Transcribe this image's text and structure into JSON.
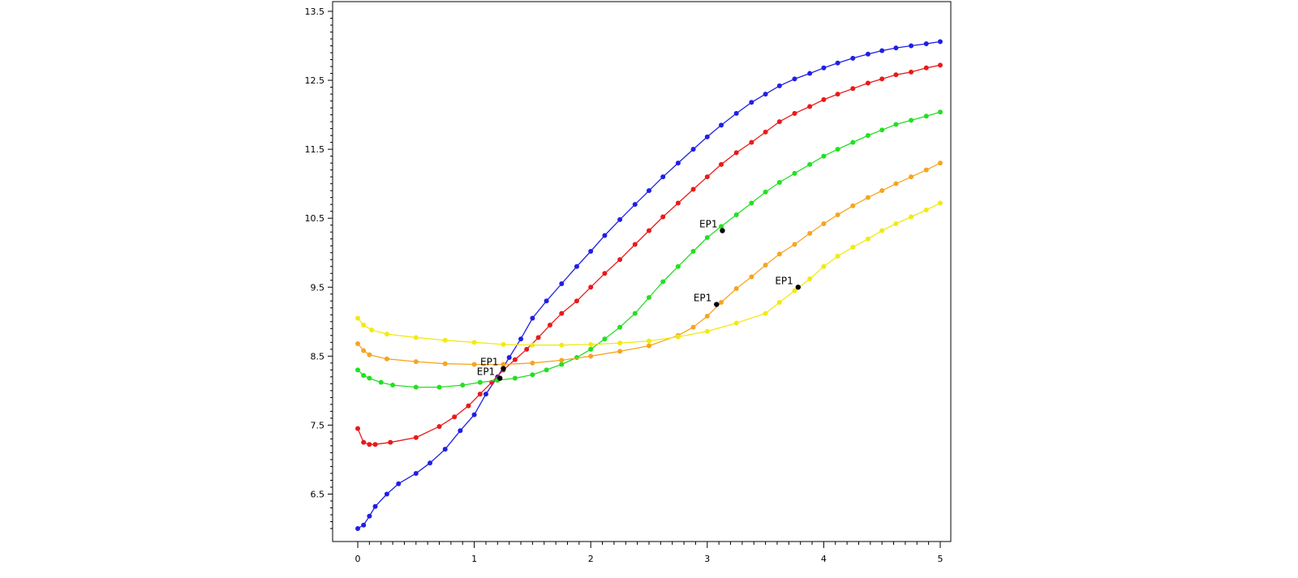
{
  "chart_data": {
    "type": "line",
    "title": "",
    "xlabel": "",
    "ylabel": "",
    "xlim": [
      0,
      5
    ],
    "ylim": [
      6,
      13.6
    ],
    "xticks": [
      "0",
      "1",
      "2",
      "3",
      "4",
      "5"
    ],
    "xtick_values": [
      0,
      1,
      2,
      3,
      4,
      5
    ],
    "yticks": [
      "6.5",
      "7.5",
      "8.5",
      "9.5",
      "10.5",
      "11.5",
      "12.5",
      "13.5"
    ],
    "ytick_values": [
      6.5,
      7.5,
      8.5,
      9.5,
      10.5,
      11.5,
      12.5,
      13.5
    ],
    "grid": false,
    "legend": "none",
    "series": [
      {
        "color": "#1f1fe6",
        "x": [
          0,
          0.05,
          0.1,
          0.15,
          0.25,
          0.35,
          0.5,
          0.62,
          0.75,
          0.88,
          1.0,
          1.1,
          1.2,
          1.3,
          1.4,
          1.5,
          1.62,
          1.75,
          1.88,
          2.0,
          2.12,
          2.25,
          2.38,
          2.5,
          2.62,
          2.75,
          2.88,
          3.0,
          3.12,
          3.25,
          3.38,
          3.5,
          3.62,
          3.75,
          3.88,
          4.0,
          4.12,
          4.25,
          4.38,
          4.5,
          4.62,
          4.75,
          4.88,
          5.0
        ],
        "y": [
          6.0,
          6.05,
          6.18,
          6.32,
          6.5,
          6.65,
          6.8,
          6.95,
          7.15,
          7.42,
          7.65,
          7.95,
          8.2,
          8.48,
          8.75,
          9.05,
          9.3,
          9.55,
          9.8,
          10.02,
          10.25,
          10.48,
          10.7,
          10.9,
          11.1,
          11.3,
          11.5,
          11.68,
          11.85,
          12.02,
          12.18,
          12.3,
          12.42,
          12.52,
          12.6,
          12.68,
          12.75,
          12.82,
          12.88,
          12.93,
          12.97,
          13.0,
          13.03,
          13.06
        ]
      },
      {
        "color": "#e81a1a",
        "x": [
          0,
          0.05,
          0.1,
          0.15,
          0.28,
          0.5,
          0.7,
          0.83,
          0.95,
          1.05,
          1.15,
          1.25,
          1.35,
          1.45,
          1.55,
          1.65,
          1.75,
          1.88,
          2.0,
          2.12,
          2.25,
          2.38,
          2.5,
          2.62,
          2.75,
          2.88,
          3.0,
          3.12,
          3.25,
          3.38,
          3.5,
          3.62,
          3.75,
          3.88,
          4.0,
          4.12,
          4.25,
          4.38,
          4.5,
          4.62,
          4.75,
          4.88,
          5.0
        ],
        "y": [
          7.45,
          7.25,
          7.22,
          7.22,
          7.25,
          7.32,
          7.48,
          7.62,
          7.78,
          7.95,
          8.12,
          8.3,
          8.45,
          8.6,
          8.77,
          8.95,
          9.12,
          9.3,
          9.5,
          9.7,
          9.9,
          10.12,
          10.32,
          10.52,
          10.72,
          10.92,
          11.1,
          11.28,
          11.45,
          11.6,
          11.75,
          11.9,
          12.02,
          12.12,
          12.22,
          12.3,
          12.38,
          12.46,
          12.52,
          12.58,
          12.62,
          12.68,
          12.72
        ]
      },
      {
        "color": "#22e022",
        "x": [
          0,
          0.05,
          0.1,
          0.2,
          0.3,
          0.5,
          0.7,
          0.9,
          1.05,
          1.2,
          1.35,
          1.5,
          1.62,
          1.75,
          1.88,
          2.0,
          2.12,
          2.25,
          2.38,
          2.5,
          2.62,
          2.75,
          2.88,
          3.0,
          3.12,
          3.25,
          3.38,
          3.5,
          3.62,
          3.75,
          3.88,
          4.0,
          4.12,
          4.25,
          4.38,
          4.5,
          4.62,
          4.75,
          4.88,
          5.0
        ],
        "y": [
          8.3,
          8.22,
          8.18,
          8.12,
          8.08,
          8.05,
          8.05,
          8.08,
          8.12,
          8.15,
          8.18,
          8.23,
          8.3,
          8.38,
          8.48,
          8.6,
          8.75,
          8.92,
          9.12,
          9.35,
          9.58,
          9.8,
          10.02,
          10.22,
          10.38,
          10.55,
          10.72,
          10.88,
          11.02,
          11.15,
          11.28,
          11.4,
          11.5,
          11.6,
          11.7,
          11.78,
          11.86,
          11.92,
          11.98,
          12.04
        ]
      },
      {
        "color": "#f5a520",
        "x": [
          0,
          0.05,
          0.1,
          0.25,
          0.5,
          0.75,
          1.0,
          1.25,
          1.5,
          1.75,
          2.0,
          2.25,
          2.5,
          2.75,
          2.88,
          3.0,
          3.12,
          3.25,
          3.38,
          3.5,
          3.62,
          3.75,
          3.88,
          4.0,
          4.12,
          4.25,
          4.38,
          4.5,
          4.62,
          4.75,
          4.88,
          5.0
        ],
        "y": [
          8.68,
          8.58,
          8.52,
          8.46,
          8.42,
          8.39,
          8.38,
          8.38,
          8.4,
          8.44,
          8.5,
          8.57,
          8.65,
          8.8,
          8.92,
          9.08,
          9.28,
          9.48,
          9.65,
          9.82,
          9.98,
          10.12,
          10.28,
          10.42,
          10.55,
          10.68,
          10.8,
          10.9,
          11.0,
          11.1,
          11.2,
          11.3
        ]
      },
      {
        "color": "#f2ea10",
        "x": [
          0,
          0.05,
          0.12,
          0.25,
          0.5,
          0.75,
          1.0,
          1.25,
          1.5,
          1.75,
          2.0,
          2.25,
          2.5,
          2.75,
          3.0,
          3.25,
          3.5,
          3.62,
          3.75,
          3.88,
          4.0,
          4.12,
          4.25,
          4.38,
          4.5,
          4.62,
          4.75,
          4.88,
          5.0
        ],
        "y": [
          9.05,
          8.95,
          8.88,
          8.82,
          8.77,
          8.73,
          8.7,
          8.67,
          8.66,
          8.66,
          8.67,
          8.69,
          8.72,
          8.78,
          8.86,
          8.98,
          9.12,
          9.28,
          9.45,
          9.62,
          9.8,
          9.95,
          10.08,
          10.2,
          10.32,
          10.42,
          10.52,
          10.62,
          10.72
        ]
      }
    ],
    "annotations": [
      {
        "label": "EP1",
        "x": 1.25,
        "y": 8.32
      },
      {
        "label": "EP1",
        "x": 1.22,
        "y": 8.18
      },
      {
        "label": "EP1",
        "x": 3.13,
        "y": 10.32
      },
      {
        "label": "EP1",
        "x": 3.08,
        "y": 9.25
      },
      {
        "label": "EP1",
        "x": 3.78,
        "y": 9.5
      }
    ]
  }
}
